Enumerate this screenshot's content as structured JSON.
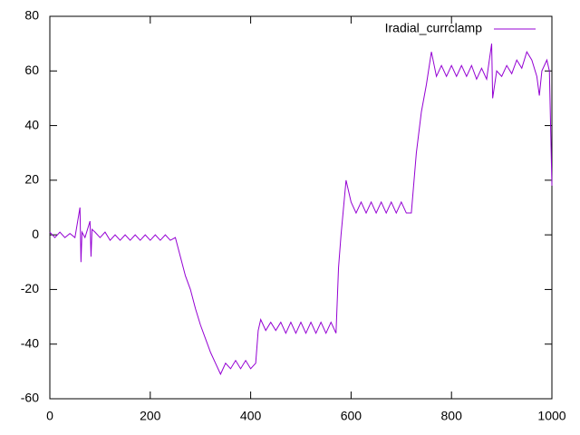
{
  "chart_data": {
    "type": "line",
    "x": [
      0,
      10,
      20,
      30,
      40,
      50,
      60,
      62,
      64,
      70,
      80,
      82,
      84,
      90,
      100,
      110,
      120,
      130,
      140,
      150,
      160,
      170,
      180,
      190,
      200,
      210,
      220,
      230,
      240,
      250,
      260,
      270,
      280,
      290,
      300,
      310,
      320,
      330,
      340,
      350,
      360,
      370,
      380,
      390,
      400,
      410,
      415,
      420,
      430,
      440,
      450,
      460,
      470,
      480,
      490,
      500,
      510,
      520,
      530,
      540,
      550,
      560,
      570,
      575,
      580,
      590,
      600,
      610,
      620,
      630,
      640,
      650,
      660,
      670,
      680,
      690,
      700,
      710,
      720,
      730,
      740,
      750,
      760,
      770,
      780,
      790,
      800,
      810,
      820,
      830,
      840,
      850,
      860,
      870,
      880,
      882,
      890,
      900,
      910,
      920,
      930,
      940,
      950,
      960,
      970,
      975,
      980,
      990,
      995,
      1000
    ],
    "series": [
      {
        "name": "Iradial_currclamp",
        "color": "#9400d3",
        "values": [
          1,
          -1,
          1,
          -1,
          0.5,
          -1,
          10,
          -10,
          1,
          -1,
          5,
          -8,
          2,
          1,
          -1,
          1,
          -2,
          0,
          -2,
          0,
          -2,
          0,
          -2,
          0,
          -2,
          0,
          -2,
          0,
          -2,
          -1,
          -8,
          -15,
          -20,
          -27,
          -33,
          -38,
          -43,
          -47,
          -51,
          -47,
          -49,
          -46,
          -49,
          -46,
          -49,
          -47,
          -35,
          -31,
          -35,
          -32,
          -35,
          -32,
          -36,
          -32,
          -36,
          -32,
          -36,
          -32,
          -36,
          -32,
          -36,
          -32,
          -36,
          -12,
          0,
          20,
          12,
          8,
          12,
          8,
          12,
          8,
          12,
          8,
          12,
          8,
          12,
          8,
          8,
          30,
          45,
          55,
          67,
          58,
          62,
          58,
          62,
          58,
          62,
          58,
          62,
          57,
          61,
          57,
          70,
          50,
          60,
          58,
          62,
          59,
          64,
          61,
          67,
          64,
          58,
          51,
          60,
          64,
          60,
          18
        ]
      }
    ],
    "xlim": [
      0,
      1000
    ],
    "xticks": [
      0,
      200,
      400,
      600,
      800,
      1000
    ],
    "ylim": [
      -60,
      80
    ],
    "yticks": [
      -60,
      -40,
      -20,
      0,
      20,
      40,
      60,
      80
    ]
  }
}
